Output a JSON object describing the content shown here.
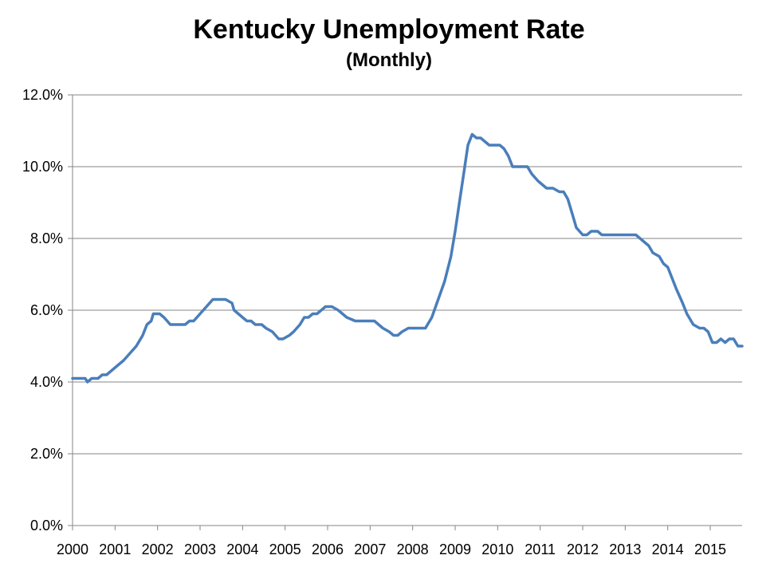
{
  "chart_data": {
    "type": "line",
    "title": "Kentucky Unemployment Rate",
    "subtitle": "(Monthly)",
    "xlabel": "",
    "ylabel": "",
    "xlim": [
      2000,
      2015.75
    ],
    "ylim": [
      0,
      12
    ],
    "y_ticks": [
      "0.0%",
      "2.0%",
      "4.0%",
      "6.0%",
      "8.0%",
      "10.0%",
      "12.0%"
    ],
    "x_ticks": [
      "2000",
      "2001",
      "2002",
      "2003",
      "2004",
      "2005",
      "2006",
      "2007",
      "2008",
      "2009",
      "2010",
      "2011",
      "2012",
      "2013",
      "2014",
      "2015"
    ],
    "grid": true,
    "line_color": "#4a7ebb",
    "series": [
      {
        "x": [
          2000.0,
          2000.3,
          2000.35,
          2000.45,
          2000.6,
          2000.7,
          2000.8,
          2001.0,
          2001.2,
          2001.35,
          2001.5,
          2001.65,
          2001.75,
          2001.85,
          2001.9,
          2002.05,
          2002.15,
          2002.3,
          2002.45,
          2002.65,
          2002.75,
          2002.85,
          2003.0,
          2003.15,
          2003.3,
          2003.45,
          2003.6,
          2003.75,
          2003.8,
          2004.0,
          2004.1,
          2004.2,
          2004.3,
          2004.45,
          2004.55,
          2004.7,
          2004.85,
          2004.95,
          2005.1,
          2005.2,
          2005.35,
          2005.45,
          2005.55,
          2005.65,
          2005.75,
          2005.85,
          2005.95,
          2006.1,
          2006.25,
          2006.45,
          2006.65,
          2006.8,
          2006.9,
          2007.0,
          2007.1,
          2007.2,
          2007.3,
          2007.45,
          2007.55,
          2007.65,
          2007.75,
          2007.9,
          2008.05,
          2008.15,
          2008.3,
          2008.45,
          2008.6,
          2008.75,
          2008.9,
          2009.0,
          2009.1,
          2009.2,
          2009.3,
          2009.4,
          2009.5,
          2009.6,
          2009.7,
          2009.8,
          2009.9,
          2010.05,
          2010.15,
          2010.25,
          2010.35,
          2010.45,
          2010.55,
          2010.7,
          2010.8,
          2010.95,
          2011.05,
          2011.15,
          2011.3,
          2011.45,
          2011.55,
          2011.65,
          2011.75,
          2011.85,
          2012.0,
          2012.1,
          2012.2,
          2012.35,
          2012.45,
          2012.6,
          2012.7,
          2012.8,
          2012.95,
          2013.1,
          2013.25,
          2013.45,
          2013.55,
          2013.65,
          2013.8,
          2013.9,
          2014.0,
          2014.1,
          2014.2,
          2014.35,
          2014.45,
          2014.6,
          2014.75,
          2014.85,
          2014.95,
          2015.05,
          2015.15,
          2015.25,
          2015.35,
          2015.45,
          2015.55,
          2015.65,
          2015.75
        ],
        "values": [
          4.1,
          4.1,
          4.0,
          4.1,
          4.1,
          4.2,
          4.2,
          4.4,
          4.6,
          4.8,
          5.0,
          5.3,
          5.6,
          5.7,
          5.9,
          5.9,
          5.8,
          5.6,
          5.6,
          5.6,
          5.7,
          5.7,
          5.9,
          6.1,
          6.3,
          6.3,
          6.3,
          6.2,
          6.0,
          5.8,
          5.7,
          5.7,
          5.6,
          5.6,
          5.5,
          5.4,
          5.2,
          5.2,
          5.3,
          5.4,
          5.6,
          5.8,
          5.8,
          5.9,
          5.9,
          6.0,
          6.1,
          6.1,
          6.0,
          5.8,
          5.7,
          5.7,
          5.7,
          5.7,
          5.7,
          5.6,
          5.5,
          5.4,
          5.3,
          5.3,
          5.4,
          5.5,
          5.5,
          5.5,
          5.5,
          5.8,
          6.3,
          6.8,
          7.5,
          8.2,
          9.0,
          9.8,
          10.6,
          10.9,
          10.8,
          10.8,
          10.7,
          10.6,
          10.6,
          10.6,
          10.5,
          10.3,
          10.0,
          10.0,
          10.0,
          10.0,
          9.8,
          9.6,
          9.5,
          9.4,
          9.4,
          9.3,
          9.3,
          9.1,
          8.7,
          8.3,
          8.1,
          8.1,
          8.2,
          8.2,
          8.1,
          8.1,
          8.1,
          8.1,
          8.1,
          8.1,
          8.1,
          7.9,
          7.8,
          7.6,
          7.5,
          7.3,
          7.2,
          6.9,
          6.6,
          6.2,
          5.9,
          5.6,
          5.5,
          5.5,
          5.4,
          5.1,
          5.1,
          5.2,
          5.1,
          5.2,
          5.2,
          5.0,
          5.0
        ]
      }
    ]
  }
}
